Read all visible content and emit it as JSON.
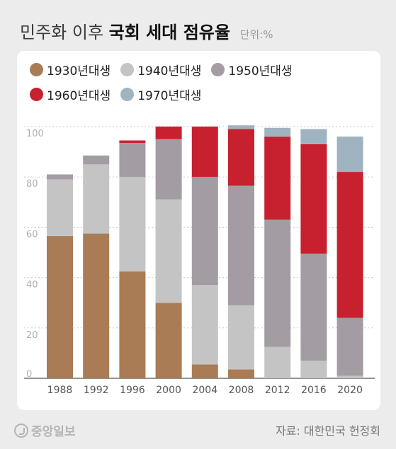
{
  "header": {
    "title_light": "민주화 이후",
    "title_bold": "국회 세대 점유율",
    "unit": "단위:%"
  },
  "footer": {
    "logo": "중앙일보",
    "source": "자료: 대한민국 헌정회"
  },
  "chart_data": {
    "type": "bar",
    "stacked": true,
    "categories": [
      "1988",
      "1992",
      "1996",
      "2000",
      "2004",
      "2008",
      "2012",
      "2016",
      "2020"
    ],
    "y_ticks": [
      "0",
      "20",
      "40",
      "60",
      "80",
      "100"
    ],
    "ylim": [
      0,
      100
    ],
    "grid": "dashed horizontal",
    "legend_position": "top",
    "series": [
      {
        "name": "1930년대생",
        "color": "#a97c55",
        "values": [
          56.5,
          57.5,
          42.5,
          30,
          5.5,
          3.5,
          0,
          0,
          0
        ]
      },
      {
        "name": "1940년대생",
        "color": "#c4c4c4",
        "values": [
          22.5,
          27.5,
          37.5,
          41,
          31.5,
          25.5,
          12.5,
          7,
          1
        ]
      },
      {
        "name": "1950년대생",
        "color": "#a39ca2",
        "values": [
          2,
          3.5,
          13.5,
          24,
          43,
          47.5,
          50.5,
          42.5,
          23
        ]
      },
      {
        "name": "1960년대생",
        "color": "#c7212f",
        "values": [
          0,
          0,
          1,
          5,
          20,
          22.5,
          33,
          43.5,
          58
        ]
      },
      {
        "name": "1970년대생",
        "color": "#9fb3c0",
        "values": [
          0,
          0,
          0,
          0,
          0,
          1.5,
          3.5,
          6,
          14
        ]
      }
    ]
  }
}
